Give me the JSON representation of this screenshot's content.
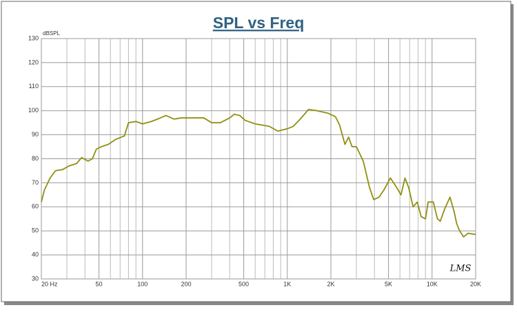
{
  "chart_data": {
    "type": "line",
    "title": "SPL vs Freq",
    "y_label": "dBSPL",
    "annotation": "LMS",
    "x": [
      20,
      21,
      23,
      25,
      28,
      31,
      35,
      38,
      42,
      45,
      48,
      52,
      58,
      65,
      75,
      80,
      90,
      100,
      115,
      127,
      145,
      165,
      185,
      225,
      265,
      300,
      345,
      400,
      430,
      470,
      510,
      600,
      750,
      860,
      1000,
      1100,
      1250,
      1400,
      1600,
      1900,
      2150,
      2300,
      2500,
      2650,
      2800,
      3000,
      3350,
      3700,
      3950,
      4300,
      4650,
      5150,
      5700,
      6100,
      6500,
      6900,
      7400,
      7900,
      8400,
      9000,
      9400,
      10200,
      10900,
      11400,
      12200,
      13300,
      14200,
      14800,
      15500,
      16500,
      17700,
      20000
    ],
    "series": [
      {
        "name": "SPL",
        "color": "#8f8f10",
        "values": [
          62,
          67,
          72,
          75,
          75.5,
          77,
          78,
          80.5,
          79,
          80,
          84,
          85,
          86,
          88,
          89.5,
          95,
          95.5,
          94.5,
          95.5,
          96.5,
          98,
          96.5,
          97,
          97,
          97,
          95,
          95,
          97,
          98.5,
          98,
          96,
          94.5,
          93.5,
          91.5,
          92.5,
          93.5,
          97,
          100.5,
          100,
          99,
          97.5,
          94,
          86,
          89,
          85,
          85,
          79,
          68,
          63,
          64,
          67,
          72,
          68,
          65,
          72,
          68,
          60,
          62,
          56,
          55,
          62,
          62,
          55,
          54,
          59,
          64,
          58,
          53,
          50,
          47.5,
          49,
          48.5
        ]
      }
    ],
    "xlog": true,
    "xlim": [
      20,
      20000
    ],
    "ylim": [
      30,
      130
    ],
    "xticks": [
      {
        "value": 20,
        "label": "20  Hz"
      },
      50,
      100,
      200,
      500,
      {
        "value": 1000,
        "label": "1K"
      },
      {
        "value": 2000,
        "label": "2K"
      },
      {
        "value": 5000,
        "label": "5K"
      },
      {
        "value": 10000,
        "label": "10K"
      },
      {
        "value": 20000,
        "label": "20K"
      }
    ],
    "xminor_grid": [
      30,
      40,
      60,
      70,
      80,
      90,
      300,
      400,
      600,
      700,
      800,
      900,
      3000,
      4000,
      6000,
      7000,
      8000,
      9000
    ],
    "yticks": [
      30,
      40,
      50,
      60,
      70,
      80,
      90,
      100,
      110,
      120,
      130
    ],
    "grid": true
  }
}
